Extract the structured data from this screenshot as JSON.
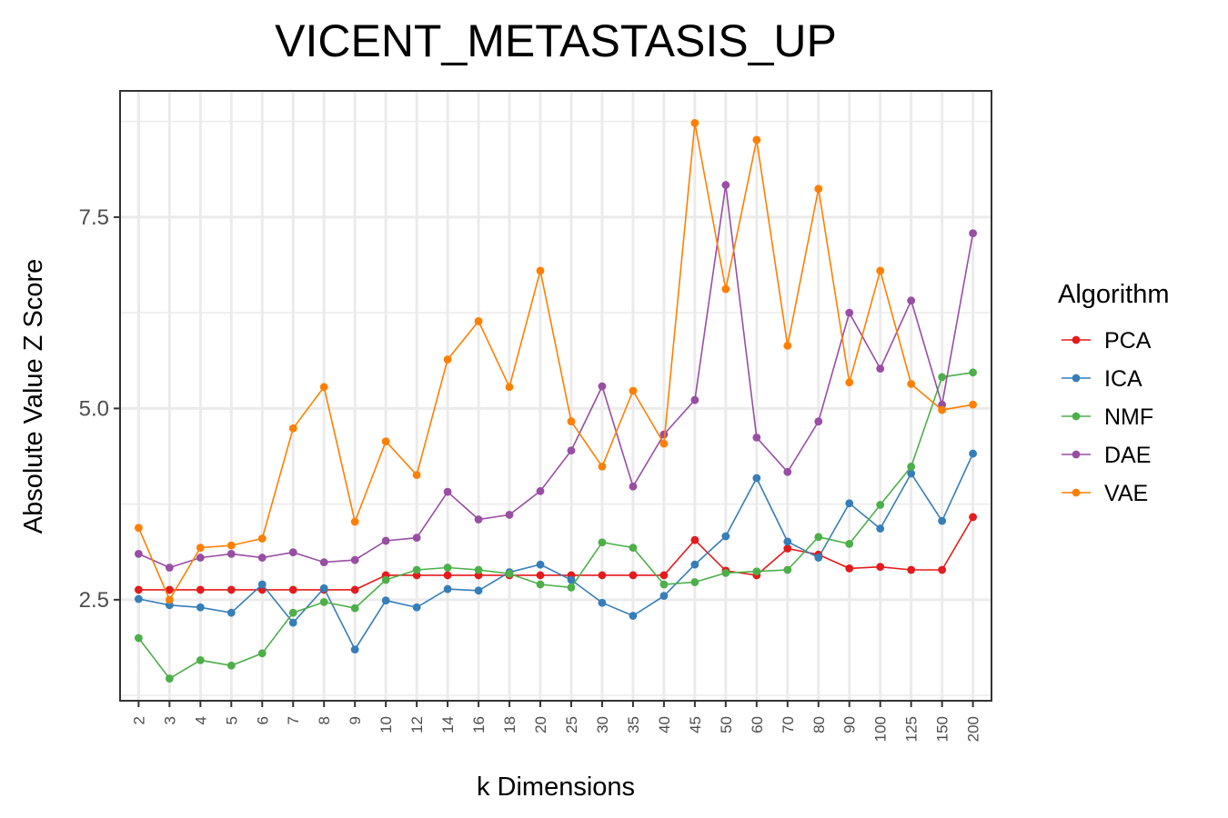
{
  "chart_data": {
    "type": "line",
    "title": "VICENT_METASTASIS_UP",
    "xlabel": "k Dimensions",
    "ylabel": "Absolute Value Z Score",
    "categories": [
      "2",
      "3",
      "4",
      "5",
      "6",
      "7",
      "8",
      "9",
      "10",
      "12",
      "14",
      "16",
      "18",
      "20",
      "25",
      "30",
      "35",
      "40",
      "45",
      "50",
      "60",
      "70",
      "80",
      "90",
      "100",
      "125",
      "150",
      "200"
    ],
    "yticks": [
      2.5,
      5.0,
      7.5
    ],
    "ytick_labels": [
      "2.5",
      "5.0",
      "7.5"
    ],
    "ylim": [
      1.18,
      9.15
    ],
    "grid": true,
    "legend": {
      "title": "Algorithm",
      "position": "right"
    },
    "series": [
      {
        "name": "PCA",
        "color": "#e41a1c",
        "values": [
          2.63,
          2.63,
          2.63,
          2.63,
          2.63,
          2.63,
          2.63,
          2.63,
          2.82,
          2.82,
          2.82,
          2.82,
          2.82,
          2.82,
          2.82,
          2.82,
          2.82,
          2.82,
          3.28,
          2.88,
          2.82,
          3.17,
          3.09,
          2.91,
          2.93,
          2.89,
          2.89,
          3.58
        ]
      },
      {
        "name": "ICA",
        "color": "#377eb8",
        "values": [
          2.51,
          2.43,
          2.4,
          2.33,
          2.7,
          2.2,
          2.65,
          1.85,
          2.49,
          2.4,
          2.64,
          2.62,
          2.86,
          2.96,
          2.76,
          2.46,
          2.29,
          2.55,
          2.96,
          3.33,
          4.09,
          3.26,
          3.05,
          3.76,
          3.43,
          4.15,
          3.53,
          4.41
        ]
      },
      {
        "name": "NMF",
        "color": "#4daf4a",
        "values": [
          2.0,
          1.47,
          1.71,
          1.64,
          1.8,
          2.33,
          2.47,
          2.39,
          2.76,
          2.89,
          2.92,
          2.89,
          2.84,
          2.7,
          2.66,
          3.25,
          3.18,
          2.7,
          2.73,
          2.85,
          2.87,
          2.89,
          3.32,
          3.23,
          3.74,
          4.24,
          5.41,
          5.47
        ]
      },
      {
        "name": "DAE",
        "color": "#984ea3",
        "values": [
          3.1,
          2.92,
          3.05,
          3.1,
          3.05,
          3.12,
          2.99,
          3.02,
          3.27,
          3.31,
          3.91,
          3.55,
          3.61,
          3.92,
          4.45,
          5.29,
          3.98,
          4.66,
          5.11,
          7.92,
          4.62,
          4.17,
          4.83,
          6.25,
          5.52,
          6.41,
          5.05,
          7.29
        ]
      },
      {
        "name": "VAE",
        "color": "#ff7f00",
        "values": [
          3.44,
          2.5,
          3.18,
          3.21,
          3.3,
          4.74,
          5.28,
          3.52,
          4.57,
          4.13,
          5.64,
          6.14,
          5.28,
          6.8,
          4.83,
          4.24,
          5.23,
          4.54,
          8.73,
          6.56,
          8.51,
          5.82,
          7.87,
          5.34,
          6.8,
          5.32,
          4.98,
          5.05
        ]
      }
    ]
  }
}
